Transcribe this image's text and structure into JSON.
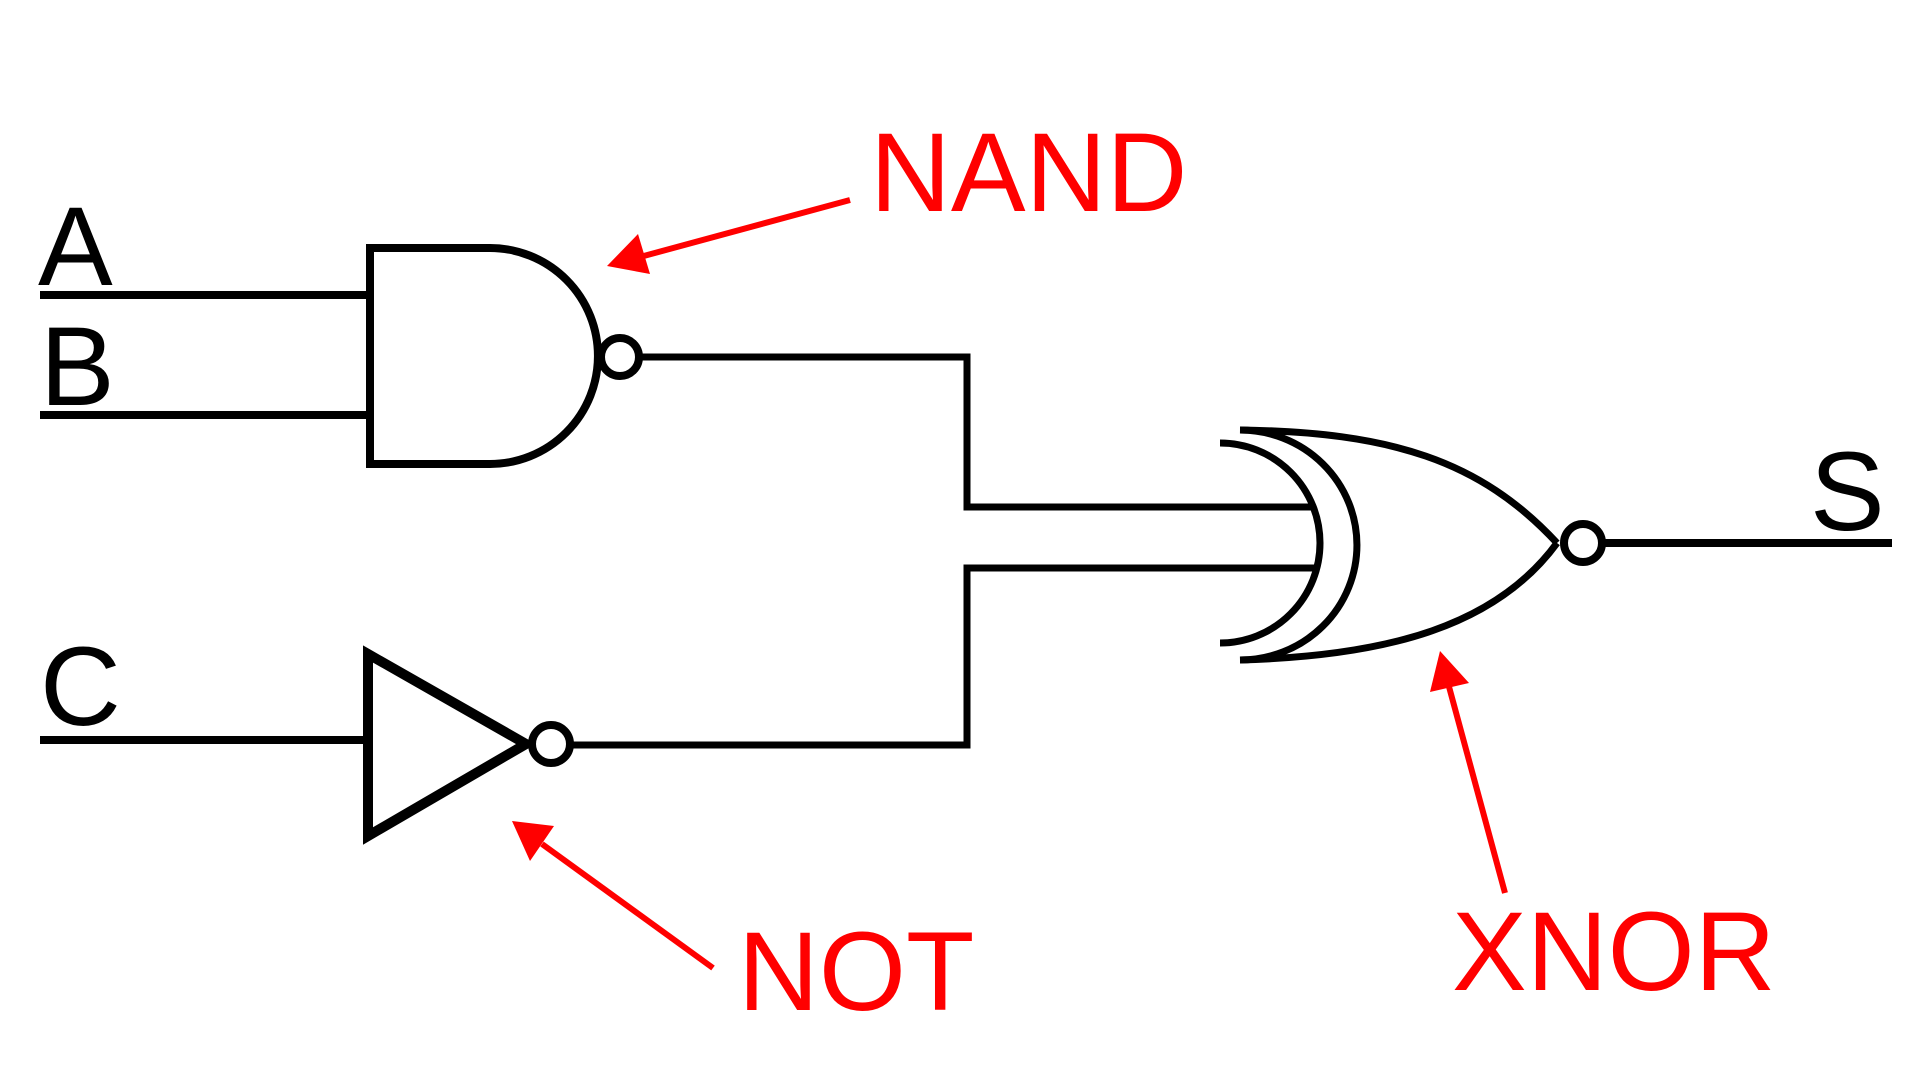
{
  "inputs": {
    "a": "A",
    "b": "B",
    "c": "C"
  },
  "output": {
    "s": "S"
  },
  "annotations": {
    "nand": "NAND",
    "not": "NOT",
    "xnor": "XNOR"
  },
  "colors": {
    "wire": "#000000",
    "annotation": "#ff0000",
    "background": "#ffffff"
  }
}
